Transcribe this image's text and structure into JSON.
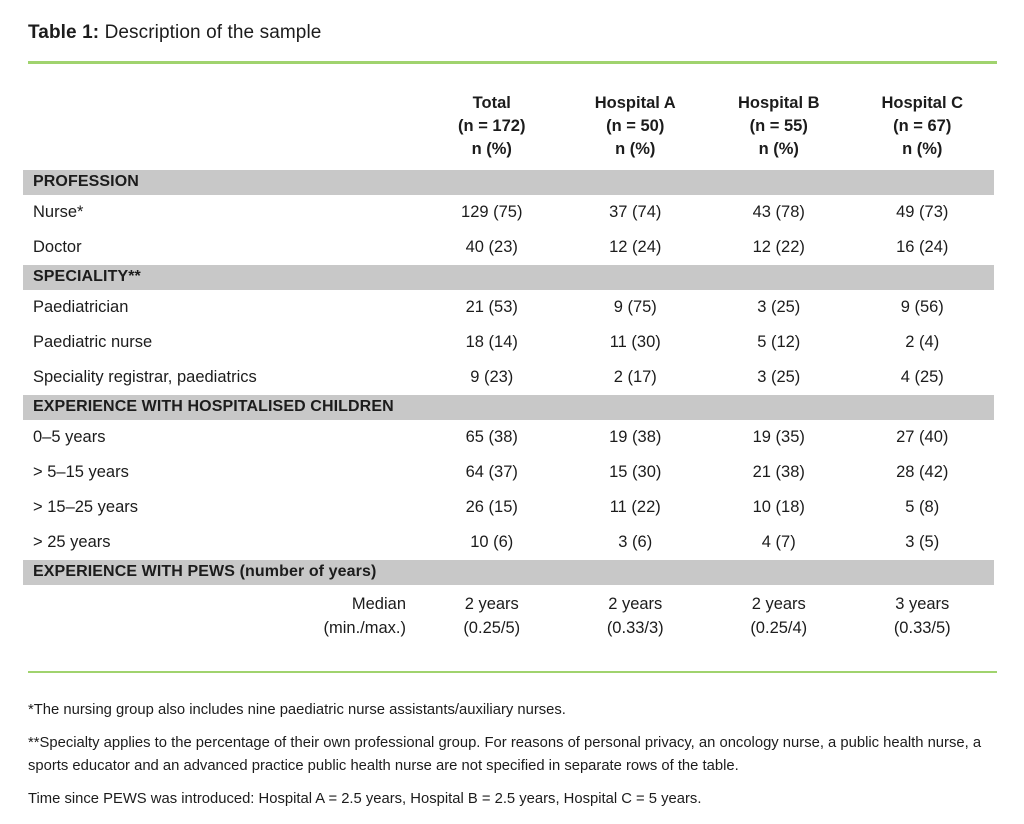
{
  "title": {
    "label": "Table 1:",
    "text": " Description of the sample"
  },
  "colors": {
    "accent_green": "#a0d36e",
    "section_gray": "#c8c8c8"
  },
  "table": {
    "columns": [
      {
        "name": "Total",
        "n": "(n = 172)",
        "unit": "n (%)"
      },
      {
        "name": "Hospital A",
        "n": "(n = 50)",
        "unit": "n (%)"
      },
      {
        "name": "Hospital B",
        "n": "(n = 55)",
        "unit": "n (%)"
      },
      {
        "name": "Hospital C",
        "n": "(n = 67)",
        "unit": "n (%)"
      }
    ],
    "sections": [
      {
        "header": "PROFESSION",
        "rows": [
          {
            "label": "Nurse*",
            "values": [
              "129 (75)",
              "37 (74)",
              "43 (78)",
              "49 (73)"
            ]
          },
          {
            "label": "Doctor",
            "values": [
              "40 (23)",
              "12 (24)",
              "12 (22)",
              "16 (24)"
            ]
          }
        ]
      },
      {
        "header": "SPECIALITY**",
        "rows": [
          {
            "label": "Paediatrician",
            "values": [
              "21 (53)",
              "9 (75)",
              "3 (25)",
              "9 (56)"
            ]
          },
          {
            "label": "Paediatric nurse",
            "values": [
              "18 (14)",
              "11 (30)",
              "5 (12)",
              "2 (4)"
            ]
          },
          {
            "label": "Speciality registrar, paediatrics",
            "values": [
              "9 (23)",
              "2 (17)",
              "3 (25)",
              "4 (25)"
            ]
          }
        ]
      },
      {
        "header": "EXPERIENCE WITH HOSPITALISED CHILDREN",
        "rows": [
          {
            "label": "0–5 years",
            "values": [
              "65 (38)",
              "19 (38)",
              "19 (35)",
              "27 (40)"
            ]
          },
          {
            "label": "> 5–15 years",
            "values": [
              "64 (37)",
              "15 (30)",
              "21 (38)",
              "28 (42)"
            ]
          },
          {
            "label": "> 15–25 years",
            "values": [
              "26 (15)",
              "11 (22)",
              "10 (18)",
              "5 (8)"
            ]
          },
          {
            "label": "> 25 years",
            "values": [
              "10 (6)",
              "3 (6)",
              "4 (7)",
              "3 (5)"
            ]
          }
        ]
      },
      {
        "header": "EXPERIENCE WITH PEWS (number of years)",
        "rows": [
          {
            "label": "Median\n(min./max.)",
            "label_align": "right",
            "multiline": true,
            "values": [
              "2 years\n(0.25/5)",
              "2 years\n(0.33/3)",
              "2 years\n(0.25/4)",
              "3 years\n(0.33/5)"
            ]
          }
        ]
      }
    ]
  },
  "footnotes": [
    "*The nursing group also includes nine paediatric nurse assistants/auxiliary nurses.",
    "**Specialty applies to the percentage of their own professional group. For reasons of personal privacy, an oncology nurse, a public health nurse, a sports educator and an advanced practice public health nurse are not specified in separate rows of the table.",
    "Time since PEWS was introduced: Hospital A = 2.5 years, Hospital B = 2.5 years, Hospital C = 5 years."
  ]
}
